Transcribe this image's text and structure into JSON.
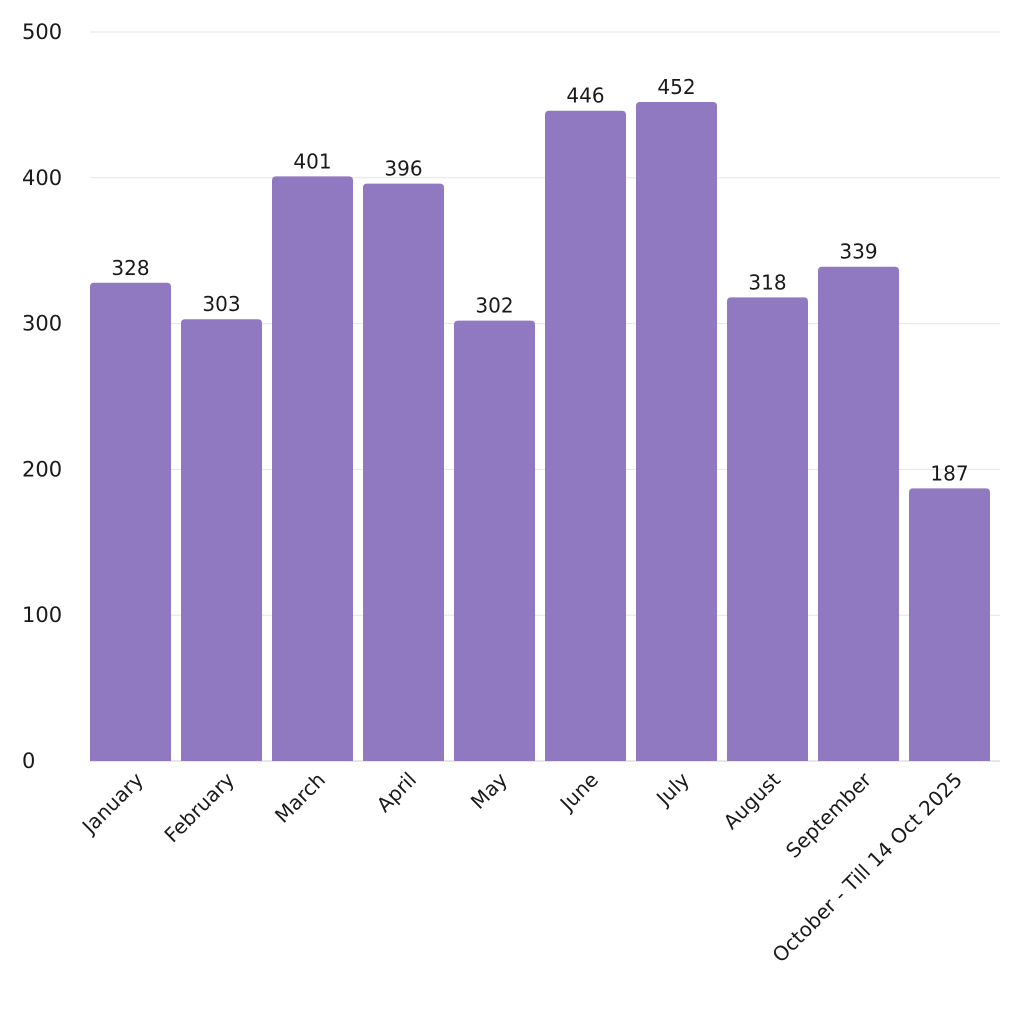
{
  "chart_data": {
    "type": "bar",
    "title": "",
    "xlabel": "",
    "ylabel": "",
    "categories": [
      "January",
      "February",
      "March",
      "April",
      "May",
      "June",
      "July",
      "August",
      "September",
      "October - Till 14 Oct 2025"
    ],
    "values": [
      328,
      303,
      401,
      396,
      302,
      446,
      452,
      318,
      339,
      187
    ],
    "data_labels": [
      "328",
      "303",
      "401",
      "396",
      "302",
      "446",
      "452",
      "318",
      "339",
      "187"
    ],
    "ylim": [
      0,
      500
    ],
    "yticks": [
      0,
      100,
      200,
      300,
      400,
      500
    ],
    "ytick_labels": [
      "0",
      "100",
      "200",
      "300",
      "400",
      "500"
    ],
    "grid": true,
    "legend": "none",
    "bar_color": "#9079c0"
  }
}
